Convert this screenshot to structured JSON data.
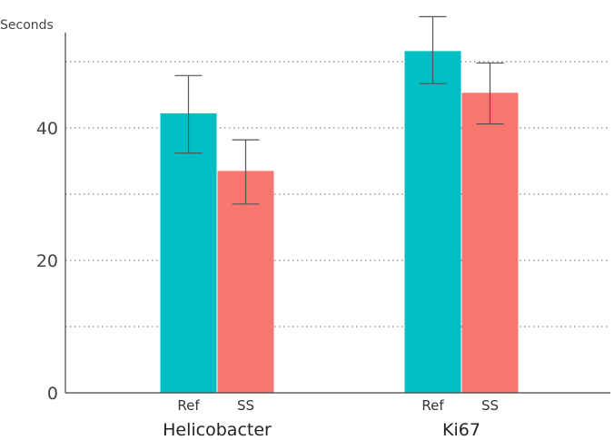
{
  "chart_data": {
    "type": "bar",
    "ylabel": "Seconds",
    "ylim": [
      0,
      55
    ],
    "yticks": [
      0,
      20,
      40
    ],
    "grid": "horizontal dotted every 10",
    "categories": [
      "Helicobacter",
      "Ki67"
    ],
    "series": [
      {
        "name": "Ref",
        "color": "#00BFC4",
        "values": [
          42.2,
          51.6
        ],
        "error_low": [
          36.2,
          46.7
        ],
        "error_high": [
          47.9,
          56.8
        ]
      },
      {
        "name": "SS",
        "color": "#F8766D",
        "values": [
          33.5,
          45.3
        ],
        "error_low": [
          28.5,
          40.6
        ],
        "error_high": [
          38.2,
          49.8
        ]
      }
    ]
  }
}
